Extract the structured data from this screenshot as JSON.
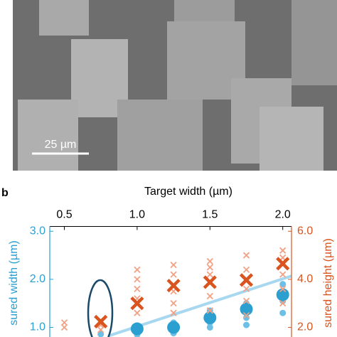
{
  "scale_bar": "25 µm",
  "panel_label": "b",
  "chart_data": {
    "type": "scatter",
    "x_title": "Target width (µm)",
    "y_title": "sured width (µm)",
    "y2_title": "sured height (µm)",
    "xlim": [
      0.4,
      2.06
    ],
    "xticks": [
      0.5,
      {
        "value": 1,
        "label": "1.0"
      },
      1.5,
      {
        "value": 2,
        "label": "2.0"
      }
    ],
    "ylim": [
      0.8,
      3.1
    ],
    "yticks": [
      {
        "value": 1,
        "label": "1.0"
      },
      {
        "value": 2,
        "label": "2.0"
      },
      {
        "value": 3,
        "label": "3.0"
      }
    ],
    "y2lim": [
      1.6,
      6.2
    ],
    "y2ticks": [
      {
        "value": 2,
        "label": "2.0"
      },
      {
        "value": 4,
        "label": "4.0"
      },
      {
        "value": 6,
        "label": "6.0"
      }
    ],
    "y_color": "#2a9fd0",
    "y2_color": "#d9541e",
    "series": [
      {
        "marker": "line",
        "color": "#a8d8ef",
        "x": [
          0.8,
          2.06
        ],
        "values": [
          0.82,
          2.07
        ]
      },
      {
        "marker": "circle",
        "emphasis": "sample",
        "color": "#6cc0e6",
        "x": [
          0.75,
          1.0,
          1.0,
          1.25,
          1.25,
          1.5,
          1.5,
          1.5,
          1.75,
          1.75,
          1.75,
          2.0,
          2.0,
          2.0
        ],
        "values": [
          0.86,
          0.85,
          0.9,
          0.88,
          1.1,
          1.0,
          1.1,
          1.35,
          1.05,
          1.2,
          1.5,
          1.3,
          1.55,
          1.9
        ]
      },
      {
        "marker": "circle",
        "emphasis": "mean",
        "color": "#2a9fd0",
        "x": [
          1.0,
          1.25,
          1.5,
          1.75,
          2.0
        ],
        "values": [
          0.97,
          1.0,
          1.2,
          1.38,
          1.68
        ]
      },
      {
        "marker": "cross",
        "emphasis": "sample",
        "axis": "y2",
        "color": "#f2a184",
        "x": [
          0.5,
          0.5,
          0.75,
          0.75,
          0.75,
          1.0,
          1.0,
          1.0,
          1.0,
          1.0,
          1.25,
          1.25,
          1.25,
          1.25,
          1.25,
          1.5,
          1.5,
          1.5,
          1.5,
          1.5,
          1.75,
          1.75,
          1.75,
          1.75,
          1.75,
          2.0,
          2.0,
          2.0,
          2.0,
          2.0
        ],
        "values": [
          2.2,
          2.0,
          2.1,
          1.9,
          2.3,
          2.6,
          3.2,
          3.6,
          4.0,
          4.4,
          2.6,
          3.0,
          3.5,
          4.2,
          4.6,
          2.7,
          3.3,
          4.2,
          4.5,
          4.75,
          2.5,
          3.1,
          3.6,
          4.4,
          5.0,
          3.0,
          3.6,
          4.2,
          4.9,
          5.2
        ]
      },
      {
        "marker": "cross",
        "emphasis": "mean",
        "axis": "y2",
        "color": "#d9541e",
        "x": [
          0.75,
          1.0,
          1.25,
          1.5,
          1.75,
          2.0
        ],
        "values": [
          2.24,
          3.0,
          3.74,
          3.88,
          3.97,
          4.65
        ]
      }
    ]
  }
}
